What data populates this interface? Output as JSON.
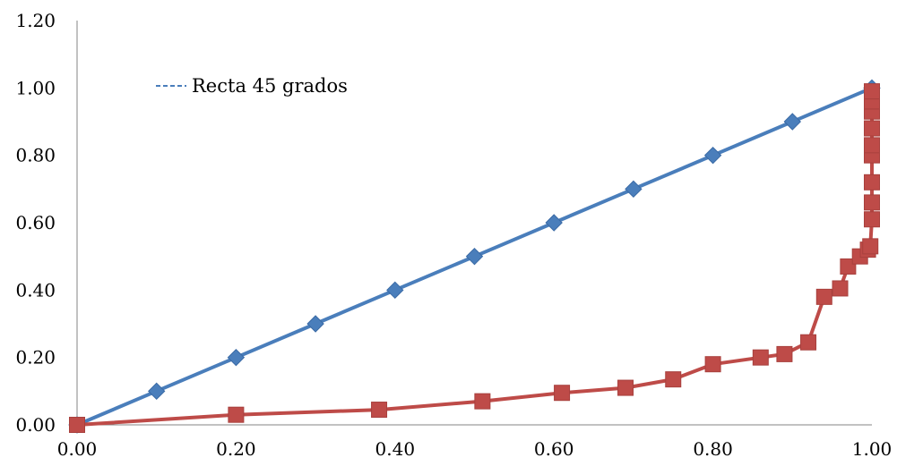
{
  "chart_data": {
    "type": "line",
    "title": "",
    "xlabel": "",
    "ylabel": "",
    "xlim": [
      0,
      1.0
    ],
    "ylim": [
      0,
      1.2
    ],
    "x_ticks": [
      "0.00",
      "0.20",
      "0.40",
      "0.60",
      "0.80",
      "1.00"
    ],
    "y_ticks": [
      "0.00",
      "0.20",
      "0.40",
      "0.60",
      "0.80",
      "1.00",
      "1.20"
    ],
    "grid": false,
    "legend": {
      "placement": "top-left",
      "entries": [
        {
          "label": "Recta 45 grados",
          "color": "#4a7ebb",
          "style": "dashed"
        }
      ]
    },
    "series": [
      {
        "name": "Recta 45 grados",
        "color": "#4a7ebb",
        "marker": "diamond",
        "x": [
          0.0,
          0.1,
          0.2,
          0.3,
          0.4,
          0.5,
          0.6,
          0.7,
          0.8,
          0.9,
          1.0
        ],
        "y": [
          0.0,
          0.1,
          0.2,
          0.3,
          0.4,
          0.5,
          0.6,
          0.7,
          0.8,
          0.9,
          1.0
        ]
      },
      {
        "color": "#be4b48",
        "marker": "square",
        "x": [
          0.0,
          0.2,
          0.38,
          0.51,
          0.61,
          0.69,
          0.75,
          0.8,
          0.86,
          0.89,
          0.92,
          0.94,
          0.96,
          0.97,
          0.985,
          0.995,
          0.998,
          1.0,
          1.0,
          1.0,
          1.0,
          1.0,
          1.0,
          1.0,
          1.0,
          1.0
        ],
        "y": [
          0.0,
          0.03,
          0.045,
          0.07,
          0.095,
          0.11,
          0.135,
          0.18,
          0.2,
          0.21,
          0.245,
          0.38,
          0.405,
          0.47,
          0.5,
          0.52,
          0.53,
          0.61,
          0.66,
          0.72,
          0.8,
          0.83,
          0.88,
          0.93,
          0.96,
          0.99
        ]
      }
    ]
  }
}
